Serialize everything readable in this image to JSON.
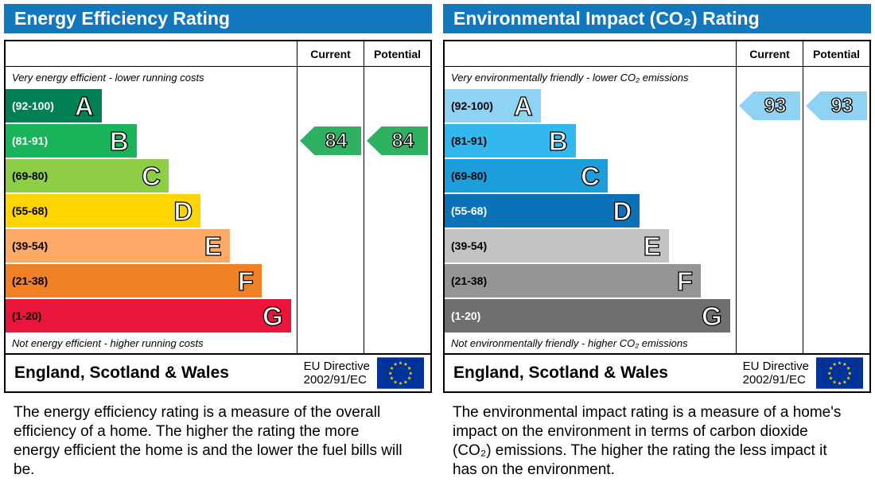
{
  "chart_data": [
    {
      "type": "bar",
      "title": "Energy Efficiency Rating",
      "column_headers": {
        "current": "Current",
        "potential": "Potential"
      },
      "top_label": "Very energy efficient - lower running costs",
      "bottom_label": "Not energy efficient - higher running costs",
      "bands": [
        {
          "letter": "A",
          "range": "(92-100)",
          "color": "#008054",
          "width_pct": 33,
          "range_text_color": "#ffffff"
        },
        {
          "letter": "B",
          "range": "(81-91)",
          "color": "#19b459",
          "width_pct": 45,
          "range_text_color": "#ffffff"
        },
        {
          "letter": "C",
          "range": "(69-80)",
          "color": "#8dce46",
          "width_pct": 56,
          "range_text_color": "#000000"
        },
        {
          "letter": "D",
          "range": "(55-68)",
          "color": "#ffd500",
          "width_pct": 67,
          "range_text_color": "#000000"
        },
        {
          "letter": "E",
          "range": "(39-54)",
          "color": "#fcaa65",
          "width_pct": 77,
          "range_text_color": "#000000"
        },
        {
          "letter": "F",
          "range": "(21-38)",
          "color": "#ef8023",
          "width_pct": 88,
          "range_text_color": "#000000"
        },
        {
          "letter": "G",
          "range": "(1-20)",
          "color": "#e9153b",
          "width_pct": 98,
          "range_text_color": "#000000"
        }
      ],
      "current": {
        "value": "84",
        "band_index": 1
      },
      "potential": {
        "value": "84",
        "band_index": 1
      },
      "arrow_color": "#2eb262",
      "footer": {
        "region": "England, Scotland & Wales",
        "directive_line1": "EU Directive",
        "directive_line2": "2002/91/EC"
      },
      "description": "The energy efficiency rating is a measure of the overall efficiency of a home. The higher the rating the more energy efficient the home is and the lower the fuel bills will be."
    },
    {
      "type": "bar",
      "title": "Environmental Impact (CO₂) Rating",
      "column_headers": {
        "current": "Current",
        "potential": "Potential"
      },
      "top_label": "Very environmentally friendly - lower CO₂ emissions",
      "bottom_label": "Not environmentally friendly - higher CO₂ emissions",
      "bands": [
        {
          "letter": "A",
          "range": "(92-100)",
          "color": "#8ed3f3",
          "width_pct": 33,
          "range_text_color": "#000000"
        },
        {
          "letter": "B",
          "range": "(81-91)",
          "color": "#32b8ef",
          "width_pct": 45,
          "range_text_color": "#000000"
        },
        {
          "letter": "C",
          "range": "(69-80)",
          "color": "#1b9ed9",
          "width_pct": 56,
          "range_text_color": "#000000"
        },
        {
          "letter": "D",
          "range": "(55-68)",
          "color": "#0b72b8",
          "width_pct": 67,
          "range_text_color": "#ffffff"
        },
        {
          "letter": "E",
          "range": "(39-54)",
          "color": "#c3c3c3",
          "width_pct": 77,
          "range_text_color": "#000000"
        },
        {
          "letter": "F",
          "range": "(21-38)",
          "color": "#959595",
          "width_pct": 88,
          "range_text_color": "#000000"
        },
        {
          "letter": "G",
          "range": "(1-20)",
          "color": "#6f6f6f",
          "width_pct": 98,
          "range_text_color": "#ffffff"
        }
      ],
      "current": {
        "value": "93",
        "band_index": 0
      },
      "potential": {
        "value": "93",
        "band_index": 0
      },
      "arrow_color": "#8ed3f3",
      "footer": {
        "region": "England, Scotland & Wales",
        "directive_line1": "EU Directive",
        "directive_line2": "2002/91/EC"
      },
      "description": "The environmental impact rating is a measure of a home's impact on the environment in terms of carbon dioxide (CO₂) emissions. The higher the rating the less impact it has on the environment."
    }
  ]
}
